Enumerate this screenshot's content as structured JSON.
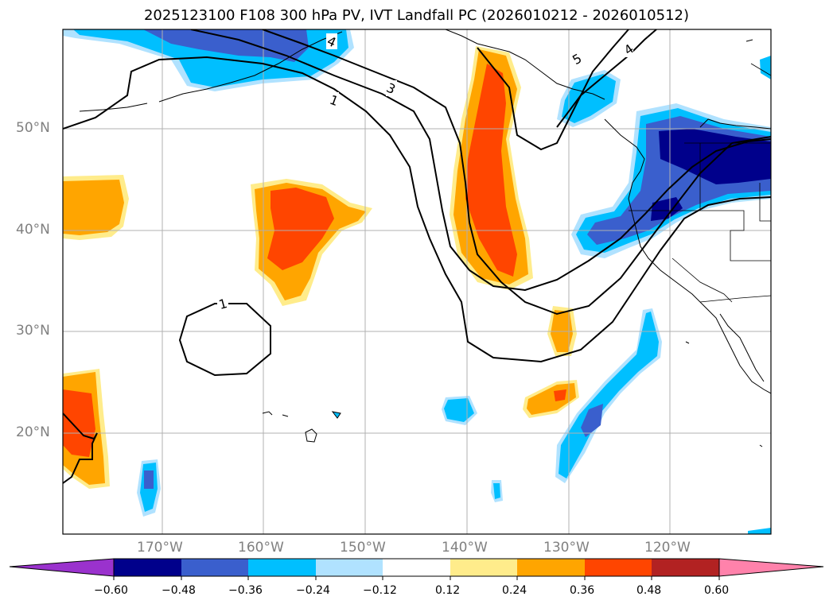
{
  "title": "2025123100 F108 300 hPa PV, IVT Landfall PC (2026010212 - 2026010512)",
  "lat_labels": [
    "50°N",
    "40°N",
    "30°N",
    "20°N"
  ],
  "lon_labels": [
    "170°W",
    "160°W",
    "150°W",
    "140°W",
    "130°W",
    "120°W"
  ],
  "contour_labels": [
    "1",
    "1",
    "3",
    "4",
    "4",
    "5"
  ],
  "colorbar": {
    "ticks": [
      "−0.60",
      "−0.48",
      "−0.36",
      "−0.24",
      "−0.12",
      "0.12",
      "0.24",
      "0.36",
      "0.48",
      "0.60"
    ],
    "colors": [
      "#9a32cd",
      "#00008b",
      "#3a5fcd",
      "#00bfff",
      "#b0e2ff",
      "#ffffff",
      "#ffec8b",
      "#ffa500",
      "#ff4500",
      "#b22222",
      "#ff82ab"
    ]
  },
  "colors": {
    "map_frame": "#000000",
    "grid": "#b0b0b0",
    "contour": "#000000",
    "tick_label": "#808080"
  }
}
